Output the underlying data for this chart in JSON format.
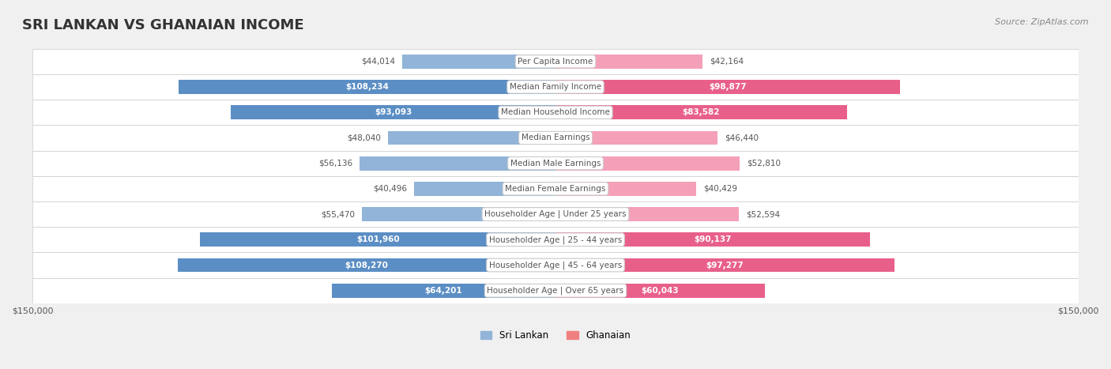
{
  "title": "SRI LANKAN VS GHANAIAN INCOME",
  "source": "Source: ZipAtlas.com",
  "categories": [
    "Per Capita Income",
    "Median Family Income",
    "Median Household Income",
    "Median Earnings",
    "Median Male Earnings",
    "Median Female Earnings",
    "Householder Age | Under 25 years",
    "Householder Age | 25 - 44 years",
    "Householder Age | 45 - 64 years",
    "Householder Age | Over 65 years"
  ],
  "sri_lankan": [
    44014,
    108234,
    93093,
    48040,
    56136,
    40496,
    55470,
    101960,
    108270,
    64201
  ],
  "ghanaian": [
    42164,
    98877,
    83582,
    46440,
    52810,
    40429,
    52594,
    90137,
    97277,
    60043
  ],
  "sri_lankan_labels": [
    "$44,014",
    "$108,234",
    "$93,093",
    "$48,040",
    "$56,136",
    "$40,496",
    "$55,470",
    "$101,960",
    "$108,270",
    "$64,201"
  ],
  "ghanaian_labels": [
    "$42,164",
    "$98,877",
    "$83,582",
    "$46,440",
    "$52,810",
    "$40,429",
    "$52,594",
    "$90,137",
    "$97,277",
    "$60,043"
  ],
  "max_value": 150000,
  "sri_lankan_color": "#92b4d8",
  "sri_lankan_color_dark": "#5b8ec4",
  "ghanaian_color": "#f4a0b8",
  "ghanaian_color_dark": "#e8608a",
  "bg_color": "#f0f0f0",
  "row_bg": "#f8f8f8",
  "label_fontsize": 8.5,
  "title_fontsize": 13,
  "bar_height": 0.55,
  "legend_sri_color": "#92b4d8",
  "legend_gha_color": "#f08080"
}
